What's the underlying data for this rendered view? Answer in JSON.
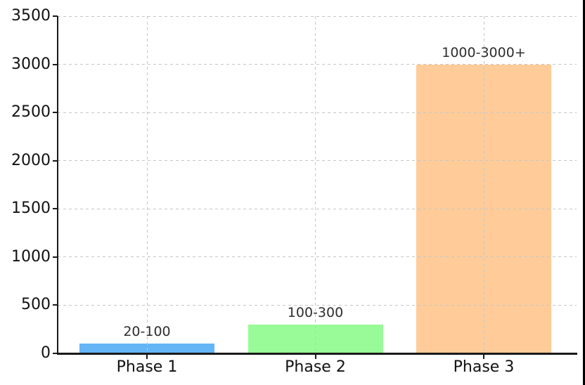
{
  "figure": {
    "background": "#ffffff"
  },
  "colors": {
    "axis": "#1a1a1a",
    "grid": "#c6c6c6",
    "tick_label": "#111111",
    "bar_label": "#2d2d2d",
    "right_edge_line": "#000000"
  },
  "chart_data": {
    "type": "bar",
    "title": "",
    "xlabel": "",
    "ylabel": "",
    "categories": [
      "Phase 1",
      "Phase 2",
      "Phase 3"
    ],
    "values": [
      100,
      300,
      3000
    ],
    "bar_labels": [
      "20-100",
      "100-300",
      "1000-3000+"
    ],
    "bar_colors": [
      "#64b5f6",
      "#98fb98",
      "#ffcc99"
    ],
    "ylim": [
      0,
      3500
    ],
    "yticks": [
      0,
      500,
      1000,
      1500,
      2000,
      2500,
      3000,
      3500
    ],
    "ytick_labels": [
      "0",
      "500",
      "1000",
      "1500",
      "2000",
      "2500",
      "3000",
      "3500"
    ],
    "grid": {
      "horizontal": true,
      "vertical": true,
      "style": "dashed",
      "above_bars": true
    },
    "legend": "none"
  }
}
